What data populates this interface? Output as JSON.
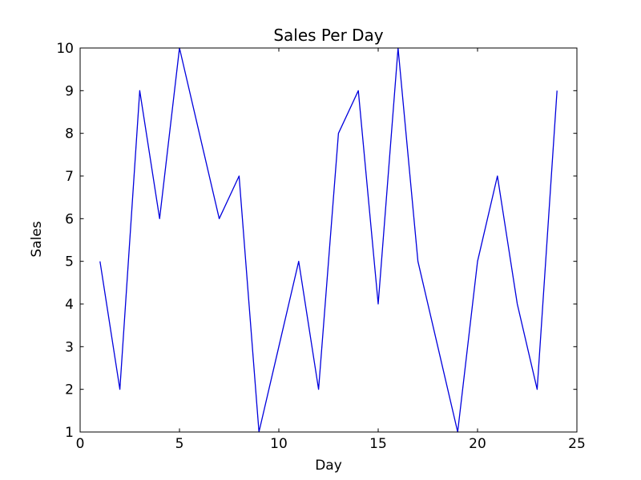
{
  "chart_data": {
    "type": "line",
    "title": "Sales Per Day",
    "xlabel": "Day",
    "ylabel": "Sales",
    "x": [
      1,
      2,
      3,
      4,
      5,
      6,
      7,
      8,
      9,
      10,
      11,
      12,
      13,
      14,
      15,
      16,
      17,
      18,
      19,
      20,
      21,
      22,
      23,
      24
    ],
    "values": [
      5,
      2,
      9,
      6,
      10,
      8,
      6,
      7,
      1,
      3,
      5,
      2,
      8,
      9,
      4,
      10,
      5,
      3,
      1,
      5,
      7,
      4,
      2,
      9
    ],
    "series_name": "Sales",
    "xlim": [
      0,
      25
    ],
    "ylim": [
      1,
      10
    ],
    "x_ticks": [
      0,
      5,
      10,
      15,
      20,
      25
    ],
    "y_ticks": [
      1,
      2,
      3,
      4,
      5,
      6,
      7,
      8,
      9,
      10
    ],
    "grid": false,
    "legend": "none",
    "line_color": "#0000dd",
    "frame_color": "#000000",
    "background_color": "#ffffff"
  }
}
